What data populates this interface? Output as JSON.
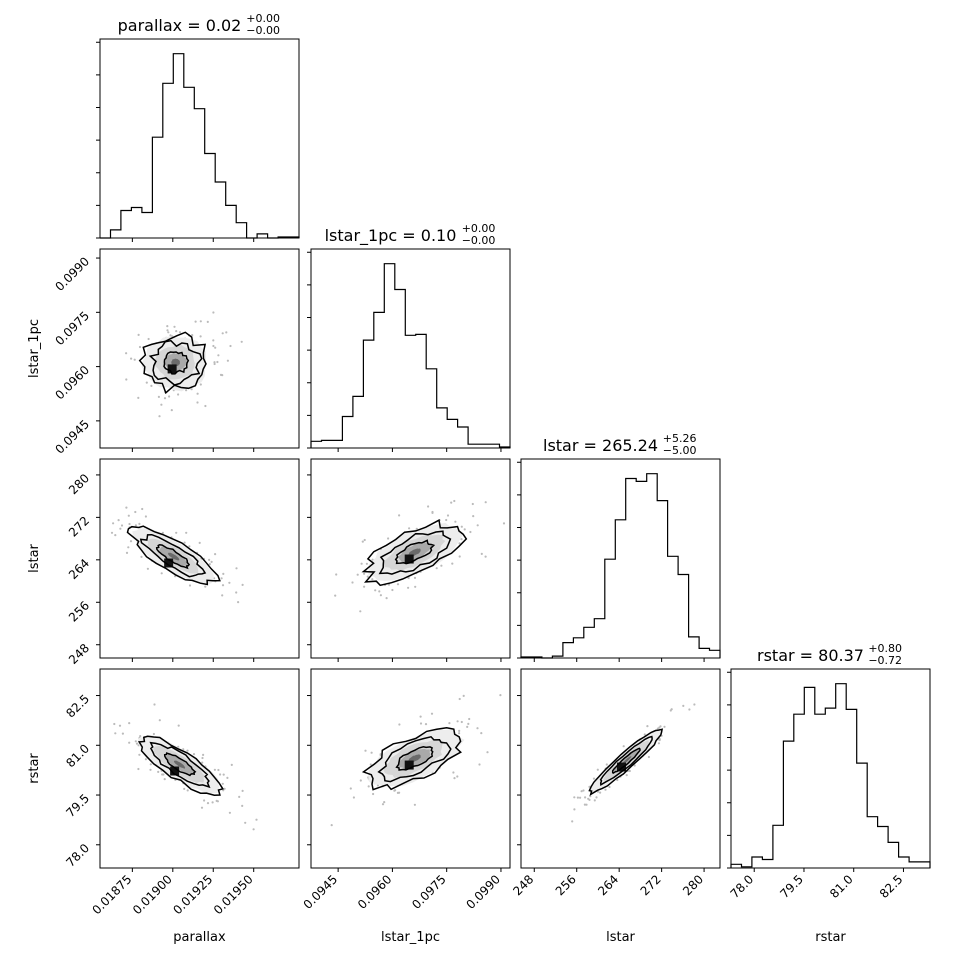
{
  "chart_data": {
    "type": "corner",
    "parameters": [
      "parallax",
      "lstar_1pc",
      "lstar",
      "rstar"
    ],
    "titles": [
      {
        "text": "parallax = 0.02",
        "plus": "+0.00",
        "minus": "−0.00"
      },
      {
        "text": "lstar_1pc = 0.10",
        "plus": "+0.00",
        "minus": "−0.00"
      },
      {
        "text": "lstar = 265.24",
        "plus": "+5.26",
        "minus": "−5.00"
      },
      {
        "text": "rstar = 80.37",
        "plus": "+0.80",
        "minus": "−0.72"
      }
    ],
    "axis_labels": [
      "parallax",
      "lstar_1pc",
      "lstar",
      "rstar"
    ],
    "ranges": [
      [
        0.01855,
        0.01978
      ],
      [
        0.09375,
        0.09925
      ],
      [
        245.5,
        283.0
      ],
      [
        77.3,
        83.3
      ]
    ],
    "ticks": [
      [
        "0.01875",
        "0.01900",
        "0.01925",
        "0.01950"
      ],
      [
        "0.0945",
        "0.0960",
        "0.0975",
        "0.0990"
      ],
      [
        "248",
        "256",
        "264",
        "272",
        "280"
      ],
      [
        "78.0",
        "79.5",
        "81.0",
        "82.5"
      ]
    ],
    "tick_values": [
      [
        0.01875,
        0.019,
        0.01925,
        0.0195
      ],
      [
        0.0945,
        0.096,
        0.0975,
        0.099
      ],
      [
        248,
        256,
        264,
        272,
        280
      ],
      [
        78.0,
        79.5,
        81.0,
        82.5
      ]
    ],
    "histograms": [
      [
        0,
        8,
        27,
        30,
        25,
        99,
        152,
        181,
        148,
        127,
        83,
        55,
        32,
        15,
        0,
        4,
        0,
        1,
        1
      ],
      [
        7,
        8,
        8,
        33,
        54,
        113,
        142,
        193,
        166,
        118,
        119,
        83,
        42,
        30,
        22,
        4,
        4,
        4,
        1
      ],
      [
        1,
        1,
        0,
        2,
        16,
        21,
        32,
        41,
        103,
        144,
        187,
        184,
        192,
        164,
        106,
        87,
        22,
        10,
        8
      ],
      [
        3,
        1,
        9,
        7,
        35,
        104,
        126,
        148,
        126,
        131,
        151,
        130,
        86,
        42,
        34,
        21,
        9,
        5,
        5
      ]
    ],
    "grid": false
  }
}
